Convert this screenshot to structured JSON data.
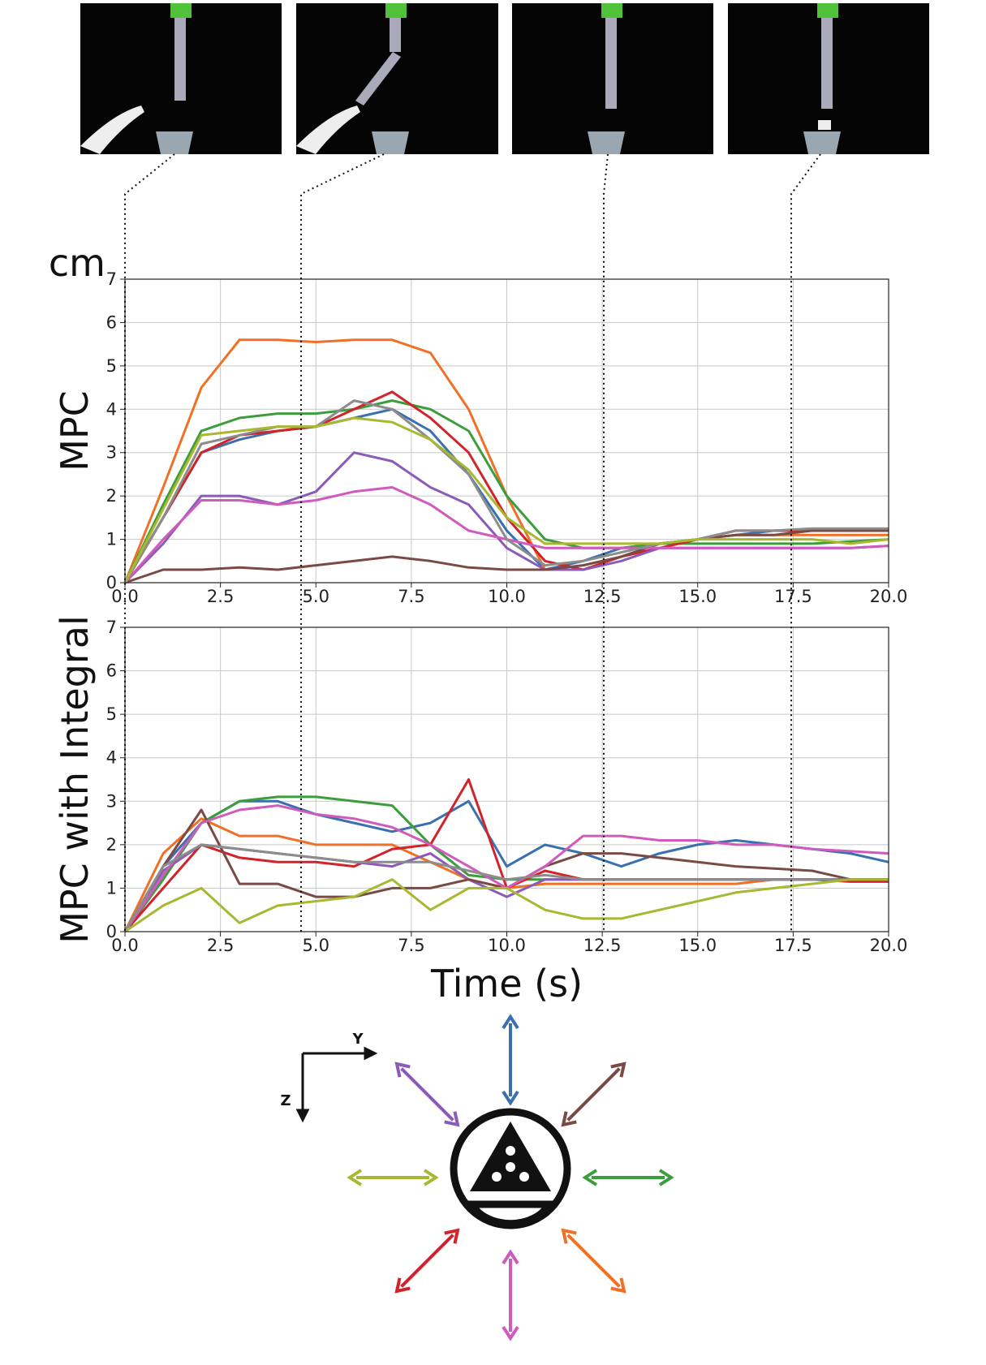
{
  "chart_data": [
    {
      "type": "line",
      "y_unit": "cm",
      "ylabel": "MPC",
      "grid": true,
      "xlim": [
        0,
        20
      ],
      "ylim": [
        0,
        7
      ],
      "xticks": [
        {
          "value": 0,
          "label": "0.0"
        },
        {
          "value": 2.5,
          "label": "2.5"
        },
        {
          "value": 5,
          "label": "5.0"
        },
        {
          "value": 7.5,
          "label": "7.5"
        },
        {
          "value": 10,
          "label": "10.0"
        },
        {
          "value": 12.5,
          "label": "12.5"
        },
        {
          "value": 15,
          "label": "15.0"
        },
        {
          "value": 17.5,
          "label": "17.5"
        },
        {
          "value": 20,
          "label": "20.0"
        }
      ],
      "yticks": [
        0,
        1,
        2,
        3,
        4,
        5,
        6,
        7
      ],
      "x": [
        0,
        1,
        2,
        3,
        4,
        5,
        6,
        7,
        8,
        9,
        10,
        11,
        12,
        13,
        14,
        15,
        16,
        17,
        18,
        19,
        20
      ],
      "series": [
        {
          "color": "#3a6fb0",
          "values": [
            0,
            1.5,
            3,
            3.3,
            3.5,
            3.6,
            3.8,
            4.0,
            3.5,
            2.5,
            1.2,
            0.3,
            0.5,
            0.8,
            0.9,
            1.0,
            1.1,
            1.2,
            1.2,
            1.2,
            1.2
          ]
        },
        {
          "color": "#f07026",
          "values": [
            0,
            2.2,
            4.5,
            5.6,
            5.6,
            5.55,
            5.6,
            5.6,
            5.3,
            4.0,
            2.0,
            0.3,
            0.3,
            0.6,
            0.9,
            1.0,
            1.1,
            1.1,
            1.1,
            1.1,
            1.1
          ]
        },
        {
          "color": "#3c9d3c",
          "values": [
            0,
            1.8,
            3.5,
            3.8,
            3.9,
            3.9,
            4.0,
            4.2,
            4.0,
            3.5,
            2.0,
            1.0,
            0.8,
            0.8,
            0.9,
            0.9,
            0.9,
            0.9,
            0.9,
            0.95,
            1.0
          ]
        },
        {
          "color": "#d2232a",
          "values": [
            0,
            1.5,
            3.0,
            3.4,
            3.5,
            3.6,
            4.0,
            4.4,
            3.8,
            3.0,
            1.5,
            0.5,
            0.3,
            0.6,
            0.8,
            1.0,
            1.2,
            1.2,
            1.2,
            1.2,
            1.2
          ]
        },
        {
          "color": "#8a5cb8",
          "values": [
            0,
            0.9,
            2.0,
            2.0,
            1.8,
            2.1,
            3.0,
            2.8,
            2.2,
            1.8,
            0.8,
            0.3,
            0.3,
            0.5,
            0.8,
            0.8,
            0.8,
            0.8,
            0.8,
            0.8,
            0.85
          ]
        },
        {
          "color": "#7a4a45",
          "values": [
            0,
            0.3,
            0.3,
            0.35,
            0.3,
            0.4,
            0.5,
            0.6,
            0.5,
            0.35,
            0.3,
            0.3,
            0.4,
            0.6,
            0.9,
            1.0,
            1.1,
            1.1,
            1.2,
            1.2,
            1.2
          ]
        },
        {
          "color": "#cf5bbd",
          "values": [
            0,
            1.0,
            1.9,
            1.9,
            1.8,
            1.9,
            2.1,
            2.2,
            1.8,
            1.2,
            1.0,
            0.8,
            0.8,
            0.8,
            0.8,
            0.8,
            0.8,
            0.8,
            0.8,
            0.8,
            0.85
          ]
        },
        {
          "color": "#8c8c8c",
          "values": [
            0,
            1.5,
            3.2,
            3.4,
            3.6,
            3.6,
            4.2,
            4.0,
            3.3,
            2.5,
            1.0,
            0.4,
            0.5,
            0.7,
            0.9,
            1.0,
            1.2,
            1.2,
            1.25,
            1.25,
            1.25
          ]
        },
        {
          "color": "#a8b831",
          "values": [
            0,
            1.7,
            3.4,
            3.5,
            3.6,
            3.6,
            3.8,
            3.7,
            3.3,
            2.6,
            1.5,
            0.9,
            0.9,
            0.9,
            0.9,
            1.0,
            1.0,
            1.0,
            1.0,
            0.9,
            1.0
          ]
        }
      ]
    },
    {
      "type": "line",
      "ylabel": "MPC with Integral",
      "xlabel": "Time (s)",
      "grid": true,
      "xlim": [
        0,
        20
      ],
      "ylim": [
        0,
        7
      ],
      "xticks": [
        {
          "value": 0,
          "label": "0.0"
        },
        {
          "value": 2.5,
          "label": "2.5"
        },
        {
          "value": 5,
          "label": "5.0"
        },
        {
          "value": 7.5,
          "label": "7.5"
        },
        {
          "value": 10,
          "label": "10.0"
        },
        {
          "value": 12.5,
          "label": "12.5"
        },
        {
          "value": 15,
          "label": "15.0"
        },
        {
          "value": 17.5,
          "label": "17.5"
        },
        {
          "value": 20,
          "label": "20.0"
        }
      ],
      "yticks": [
        0,
        1,
        2,
        3,
        4,
        5,
        6,
        7
      ],
      "x": [
        0,
        1,
        2,
        3,
        4,
        5,
        6,
        7,
        8,
        9,
        10,
        11,
        12,
        13,
        14,
        15,
        16,
        17,
        18,
        19,
        20
      ],
      "series": [
        {
          "color": "#3a6fb0",
          "values": [
            0,
            1.5,
            2.5,
            3.0,
            3.0,
            2.7,
            2.5,
            2.3,
            2.5,
            3.0,
            1.5,
            2.0,
            1.8,
            1.5,
            1.8,
            2.0,
            2.1,
            2.0,
            1.9,
            1.8,
            1.6
          ]
        },
        {
          "color": "#f07026",
          "values": [
            0,
            1.8,
            2.6,
            2.2,
            2.2,
            2.0,
            2.0,
            2.0,
            1.6,
            1.2,
            1.0,
            1.1,
            1.1,
            1.1,
            1.1,
            1.1,
            1.1,
            1.2,
            1.2,
            1.2,
            1.2
          ]
        },
        {
          "color": "#3c9d3c",
          "values": [
            0,
            1.2,
            2.5,
            3.0,
            3.1,
            3.1,
            3.0,
            2.9,
            2.0,
            1.3,
            1.2,
            1.2,
            1.2,
            1.2,
            1.2,
            1.2,
            1.2,
            1.2,
            1.2,
            1.2,
            1.2
          ]
        },
        {
          "color": "#d2232a",
          "values": [
            0,
            1.0,
            2.0,
            1.7,
            1.6,
            1.6,
            1.5,
            1.9,
            2.0,
            3.5,
            1.0,
            1.4,
            1.2,
            1.2,
            1.2,
            1.2,
            1.2,
            1.2,
            1.2,
            1.15,
            1.15
          ]
        },
        {
          "color": "#8a5cb8",
          "values": [
            0,
            1.4,
            2.0,
            1.9,
            1.8,
            1.7,
            1.6,
            1.5,
            1.8,
            1.2,
            0.8,
            1.2,
            1.2,
            1.2,
            1.2,
            1.2,
            1.2,
            1.2,
            1.2,
            1.2,
            1.2
          ]
        },
        {
          "color": "#7a4a45",
          "values": [
            0,
            1.5,
            2.8,
            1.1,
            1.1,
            0.8,
            0.8,
            1.0,
            1.0,
            1.2,
            1.0,
            1.5,
            1.8,
            1.8,
            1.7,
            1.6,
            1.5,
            1.45,
            1.4,
            1.2,
            1.2
          ]
        },
        {
          "color": "#cf5bbd",
          "values": [
            0,
            1.3,
            2.5,
            2.8,
            2.9,
            2.7,
            2.6,
            2.4,
            2.0,
            1.5,
            1.0,
            1.5,
            2.2,
            2.2,
            2.1,
            2.1,
            2.0,
            2.0,
            1.9,
            1.85,
            1.8
          ]
        },
        {
          "color": "#8c8c8c",
          "values": [
            0,
            1.5,
            2.0,
            1.9,
            1.8,
            1.7,
            1.6,
            1.6,
            1.6,
            1.4,
            1.2,
            1.3,
            1.2,
            1.2,
            1.2,
            1.2,
            1.2,
            1.2,
            1.2,
            1.2,
            1.2
          ]
        },
        {
          "color": "#a8b831",
          "values": [
            0,
            0.6,
            1.0,
            0.2,
            0.6,
            0.7,
            0.8,
            1.2,
            0.5,
            1.0,
            1.0,
            0.5,
            0.3,
            0.3,
            0.5,
            0.7,
            0.9,
            1.0,
            1.1,
            1.2,
            1.2
          ]
        }
      ]
    }
  ],
  "diagram": {
    "y_axis": "Y",
    "z_axis": "Z"
  }
}
